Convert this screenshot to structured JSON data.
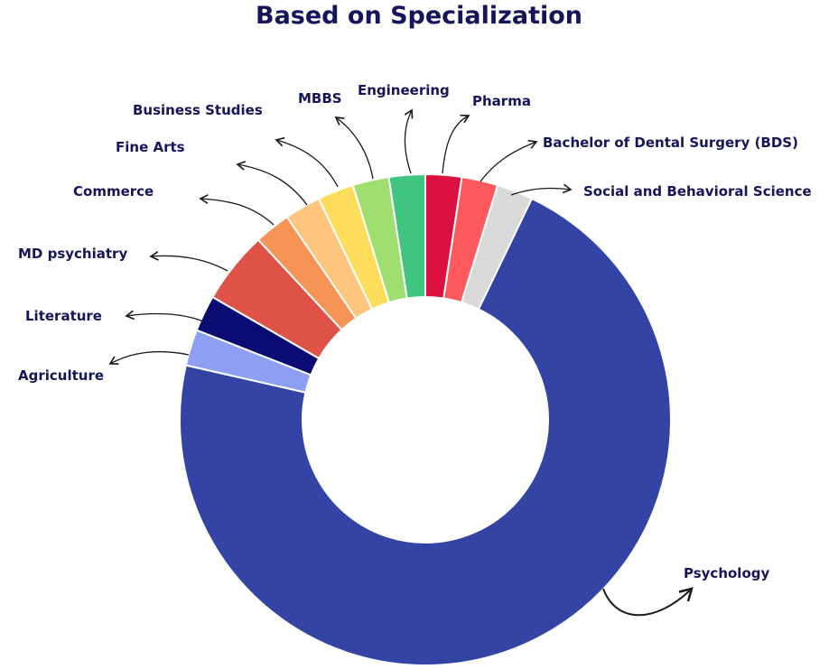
{
  "colors": {
    "label_text": "#14155a",
    "arrow": "#1a1a1a",
    "background": "#ffffff"
  },
  "chart_data": {
    "type": "donut",
    "title": "Based on Specialization",
    "legend": "none",
    "slices": [
      {
        "name": "Pharma",
        "value": 2.3,
        "color": "#dc1141"
      },
      {
        "name": "Bachelor of Dental Surgery (BDS)",
        "value": 2.3,
        "color": "#fe5a5d"
      },
      {
        "name": "Social and Behavioral Science",
        "value": 2.3,
        "color": "#d9d9d9"
      },
      {
        "name": "Psychology",
        "value": 69.0,
        "color": "#3444a4"
      },
      {
        "name": "Agriculture",
        "value": 2.3,
        "color": "#8c9ff3"
      },
      {
        "name": "Literature",
        "value": 2.3,
        "color": "#0a0b73"
      },
      {
        "name": "MD psychiatry",
        "value": 4.6,
        "color": "#de5248"
      },
      {
        "name": "Commerce",
        "value": 2.3,
        "color": "#f69456"
      },
      {
        "name": "Fine Arts",
        "value": 2.3,
        "color": "#fec57e"
      },
      {
        "name": "Business Studies",
        "value": 2.3,
        "color": "#fedd5c"
      },
      {
        "name": "MBBS",
        "value": 2.3,
        "color": "#9edf70"
      },
      {
        "name": "Engineering",
        "value": 2.3,
        "color": "#40c581"
      }
    ]
  }
}
